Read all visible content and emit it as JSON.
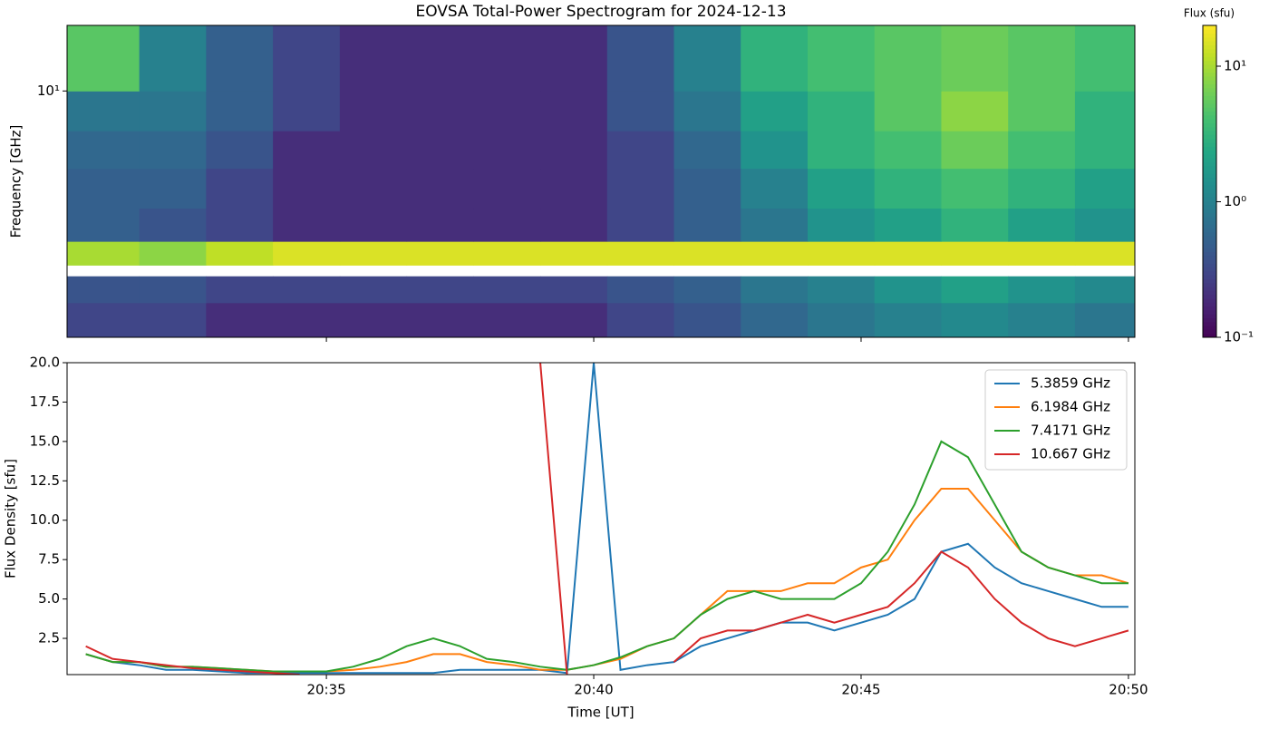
{
  "chart_data": [
    {
      "type": "heatmap",
      "title": "EOVSA Total-Power Spectrogram for 2024-12-13",
      "ylabel": "Frequency [GHz]",
      "x_edges": [
        30.15,
        31.5,
        32.75,
        34,
        35.25,
        36.5,
        37.75,
        39,
        40.25,
        41.5,
        42.75,
        44,
        45.25,
        46.5,
        47.75,
        49,
        50.12
      ],
      "y_edges": [
        1.1,
        1.5,
        1.9,
        2.1,
        2.6,
        3.5,
        5,
        7,
        10,
        18
      ],
      "values": [
        [
          0.3,
          0.3,
          0.2,
          0.2,
          0.2,
          0.2,
          0.2,
          0.2,
          0.3,
          0.4,
          0.6,
          0.8,
          1,
          1.2,
          1,
          0.8
        ],
        [
          0.4,
          0.4,
          0.3,
          0.3,
          0.3,
          0.3,
          0.3,
          0.3,
          0.4,
          0.5,
          0.8,
          1,
          1.5,
          2,
          1.5,
          1.2
        ],
        [
          null,
          null,
          null,
          null,
          null,
          null,
          null,
          null,
          null,
          null,
          null,
          null,
          null,
          null,
          null,
          null
        ],
        [
          10,
          8,
          12,
          15,
          15,
          15,
          15,
          15,
          15,
          15,
          15,
          15,
          15,
          15,
          15,
          15
        ],
        [
          0.5,
          0.4,
          0.3,
          0.2,
          0.2,
          0.2,
          0.2,
          0.2,
          0.3,
          0.5,
          0.8,
          1.5,
          2,
          3,
          2,
          1.5
        ],
        [
          0.5,
          0.5,
          0.3,
          0.2,
          0.2,
          0.2,
          0.2,
          0.2,
          0.3,
          0.5,
          1,
          2,
          3,
          4,
          3,
          2
        ],
        [
          0.6,
          0.6,
          0.4,
          0.2,
          0.2,
          0.2,
          0.2,
          0.2,
          0.3,
          0.6,
          1.5,
          3,
          4,
          6,
          4,
          3
        ],
        [
          0.8,
          0.8,
          0.5,
          0.3,
          0.2,
          0.2,
          0.2,
          0.2,
          0.4,
          0.8,
          2,
          3,
          5,
          8,
          5,
          3
        ],
        [
          5,
          1,
          0.5,
          0.3,
          0.2,
          0.2,
          0.2,
          0.2,
          0.4,
          1,
          3,
          4,
          5,
          6,
          5,
          4
        ]
      ],
      "xlim": [
        30.15,
        50.12
      ],
      "xticks": [
        35,
        40,
        45,
        50
      ],
      "ylim": [
        1.1,
        18
      ],
      "log_y": true,
      "yticks": [
        {
          "value": 10,
          "label": "10¹"
        }
      ],
      "colorbar_label": "Flux (sfu)",
      "clim": [
        0.1,
        20
      ],
      "log_color": true,
      "colormap": "viridis",
      "cticks": [
        {
          "value": 0.1,
          "label": "10⁻¹"
        },
        {
          "value": 1,
          "label": "10⁰"
        },
        {
          "value": 10,
          "label": "10¹"
        }
      ]
    },
    {
      "type": "line",
      "xlabel": "Time [UT]",
      "ylabel": "Flux Density [sfu]",
      "x": [
        30.5,
        31,
        31.5,
        32,
        32.5,
        33,
        33.5,
        34,
        34.5,
        35,
        35.5,
        36,
        36.5,
        37,
        37.5,
        38,
        38.5,
        39,
        39.5,
        40,
        40.5,
        41,
        41.5,
        42,
        42.5,
        43,
        43.5,
        44,
        44.5,
        45,
        45.5,
        46,
        46.5,
        47,
        47.5,
        48,
        48.5,
        49,
        49.5,
        50
      ],
      "series": [
        {
          "name": "5.3859 GHz",
          "color": "#1f77b4",
          "values": [
            1.5,
            1,
            0.8,
            0.5,
            0.5,
            0.4,
            0.3,
            0.3,
            0.3,
            0.3,
            0.3,
            0.3,
            0.3,
            0.3,
            0.5,
            0.5,
            0.5,
            0.5,
            0.3,
            20,
            0.5,
            0.8,
            1,
            2,
            2.5,
            3,
            3.5,
            3.5,
            3,
            3.5,
            4,
            5,
            8,
            8.5,
            7,
            6,
            5.5,
            5,
            4.5,
            4.5
          ]
        },
        {
          "name": "6.1984 GHz",
          "color": "#ff7f0e",
          "values": [
            1.5,
            1,
            1,
            0.7,
            0.7,
            0.6,
            0.5,
            0.4,
            0.4,
            0.4,
            0.5,
            0.7,
            1,
            1.5,
            1.5,
            1,
            0.8,
            0.5,
            0.5,
            0.8,
            1.2,
            2,
            2.5,
            4,
            5.5,
            5.5,
            5.5,
            6,
            6,
            7,
            7.5,
            10,
            12,
            12,
            10,
            8,
            7,
            6.5,
            6.5,
            6
          ]
        },
        {
          "name": "7.4171 GHz",
          "color": "#2ca02c",
          "values": [
            1.5,
            1,
            1,
            0.7,
            0.7,
            0.6,
            0.5,
            0.4,
            0.4,
            0.4,
            0.7,
            1.2,
            2,
            2.5,
            2,
            1.2,
            1,
            0.7,
            0.5,
            0.8,
            1.3,
            2,
            2.5,
            4,
            5,
            5.5,
            5,
            5,
            5,
            6,
            8,
            11,
            15,
            14,
            11,
            8,
            7,
            6.5,
            6,
            6
          ]
        },
        {
          "name": "10.667 GHz",
          "color": "#d62728",
          "values": [
            2,
            1.2,
            1,
            0.8,
            0.6,
            0.5,
            0.4,
            0.3,
            0.2,
            null,
            null,
            null,
            null,
            null,
            null,
            null,
            null,
            20,
            0.2,
            null,
            null,
            null,
            1,
            2.5,
            3,
            3,
            3.5,
            4,
            3.5,
            4,
            4.5,
            6,
            8,
            7,
            5,
            3.5,
            2.5,
            2,
            2.5,
            3
          ]
        }
      ],
      "xlim": [
        30.15,
        50.12
      ],
      "xticks": [
        {
          "value": 35,
          "label": "20:35"
        },
        {
          "value": 40,
          "label": "20:40"
        },
        {
          "value": 45,
          "label": "20:45"
        },
        {
          "value": 50,
          "label": "20:50"
        }
      ],
      "ylim": [
        0.2,
        20
      ],
      "yticks": [
        2.5,
        {
          "value": 5,
          "label": "5.0"
        },
        7.5,
        {
          "value": 10,
          "label": "10.0"
        },
        12.5,
        {
          "value": 15,
          "label": "15.0"
        },
        17.5,
        {
          "value": 20,
          "label": "20.0"
        }
      ],
      "legend": "upper right"
    }
  ]
}
